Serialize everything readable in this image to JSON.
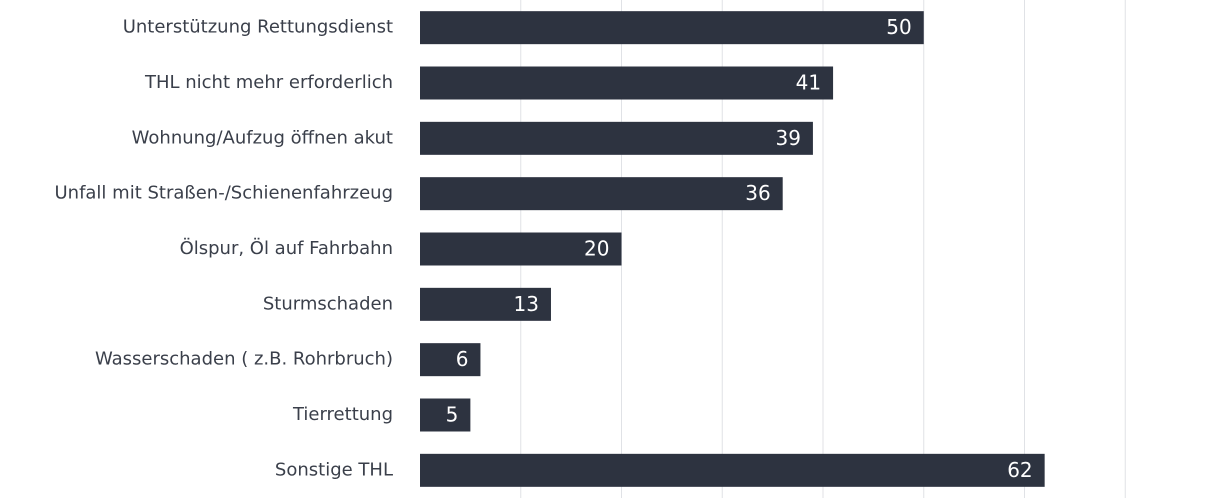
{
  "chart_data": {
    "type": "barh",
    "categories": [
      "Unterstützung Rettungsdienst",
      "THL nicht mehr erforderlich",
      "Wohnung/Aufzug öffnen akut",
      "Unfall mit Straßen-/Schienenfahrzeug",
      "Ölspur, Öl auf Fahrbahn",
      "Sturmschaden",
      "Wasserschaden ( z.B. Rohrbruch)",
      "Tierrettung",
      "Sonstige THL"
    ],
    "values": [
      50,
      41,
      39,
      36,
      20,
      13,
      6,
      5,
      62
    ],
    "color": "#2d3340",
    "xlim": [
      0,
      80
    ],
    "xticks": [
      10,
      20,
      30,
      40,
      50,
      60,
      70
    ],
    "grid": true
  }
}
